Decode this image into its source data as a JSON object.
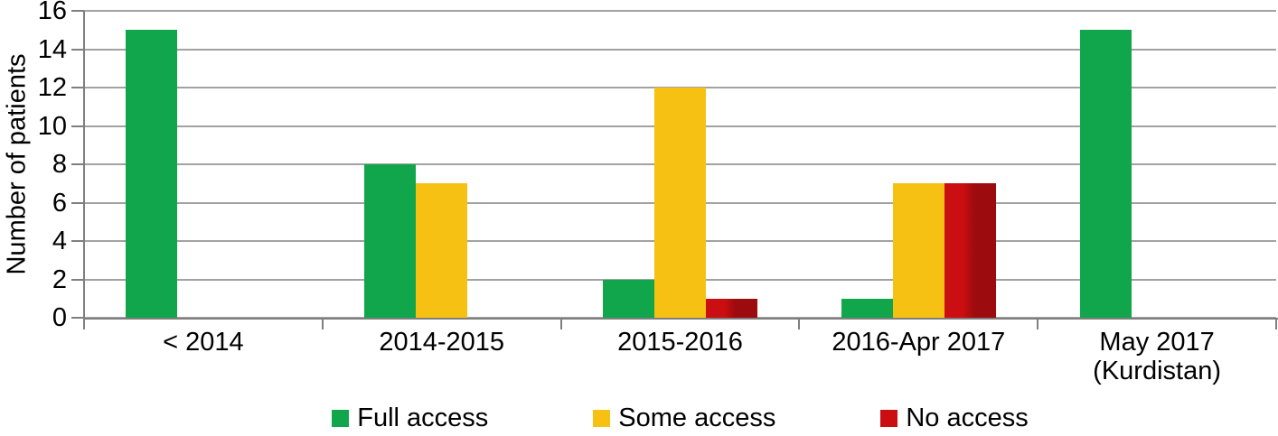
{
  "chart_data": {
    "type": "bar",
    "title": "",
    "xlabel": "",
    "ylabel": "Number of patients",
    "ylim": [
      0,
      16
    ],
    "yticks": [
      0,
      2,
      4,
      6,
      8,
      10,
      12,
      14,
      16
    ],
    "grid": true,
    "legend_position": "bottom",
    "categories": [
      "< 2014",
      "2014-2015",
      "2015-2016",
      "2016-Apr 2017",
      "May 2017\n(Kurdistan)"
    ],
    "series": [
      {
        "name": "Full access",
        "color": "#11a64b",
        "values": [
          15,
          8,
          2,
          1,
          15
        ]
      },
      {
        "name": "Some access",
        "color": "#f6c112",
        "values": [
          0,
          7,
          12,
          7,
          0
        ]
      },
      {
        "name": "No access",
        "color": "#cb0e11",
        "color_dark": "#9c0b0e",
        "values": [
          0,
          0,
          1,
          7,
          0
        ]
      }
    ],
    "colors": {
      "gridline": "#a2a2a2",
      "axis": "#7f7f7f",
      "text": "#000000"
    }
  }
}
